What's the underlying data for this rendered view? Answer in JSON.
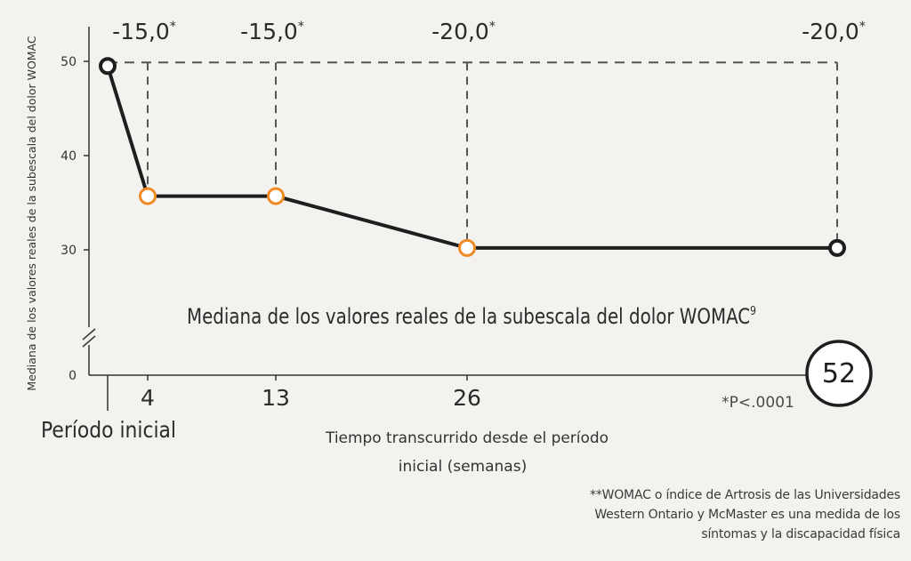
{
  "chart_data": {
    "type": "line",
    "title": "Mediana de los valores reales de la subescala del dolor WOMAC",
    "title_superscript": "9",
    "ylabel": "Mediana de los valores reales de la subescala del dolor WOMAC",
    "xlabel_line1": "Tiempo transcurrido desde el período",
    "xlabel_line2": "inicial (semanas)",
    "baseline_label": "Período inicial",
    "x_tick_labels": [
      "4",
      "13",
      "26",
      "52"
    ],
    "y_ticks": [
      0,
      30,
      40,
      50
    ],
    "axis_break": true,
    "series": [
      {
        "x": [
          0,
          4,
          13,
          26,
          52
        ],
        "y": [
          49.5,
          35.7,
          35.7,
          30.2,
          30.2
        ]
      }
    ],
    "changes": [
      {
        "x": 4,
        "label": "-15,0",
        "mark": "*"
      },
      {
        "x": 13,
        "label": "-15,0",
        "mark": "*"
      },
      {
        "x": 26,
        "label": "-20,0",
        "mark": "*"
      },
      {
        "x": 52,
        "label": "-20,0",
        "mark": "*"
      }
    ],
    "significance": "*P<.0001",
    "colors": {
      "line": "#1e1e1e",
      "highlight_marker": "#f08a24",
      "background": "#f3f2ef",
      "dashes": "#555555"
    }
  },
  "footnote": [
    "**WOMAC o índice de Artrosis de las Universidades",
    "Western Ontario y McMaster es una medida de los",
    "síntomas y la discapacidad física"
  ]
}
